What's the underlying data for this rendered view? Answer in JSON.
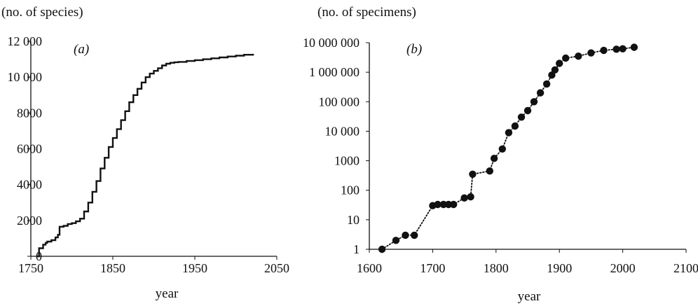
{
  "chart_data": [
    {
      "type": "line",
      "panel_label": "(a)",
      "ylabel": "(no. of species)",
      "xlabel": "year",
      "xlim": [
        1750,
        2050
      ],
      "ylim": [
        0,
        12000
      ],
      "x_ticks": [
        1750,
        1850,
        1950,
        2050
      ],
      "x_tick_labels": [
        "1750",
        "1850",
        "1950",
        "2050"
      ],
      "y_ticks": [
        0,
        2000,
        4000,
        6000,
        8000,
        10000,
        12000
      ],
      "y_tick_labels": [
        "0",
        "2000",
        "4000",
        "6000",
        "8000",
        "10 000",
        "12 000"
      ],
      "grid": false,
      "series": [
        {
          "style": "step",
          "x": [
            1758,
            1760,
            1763,
            1765,
            1768,
            1770,
            1775,
            1780,
            1783,
            1785,
            1790,
            1795,
            1800,
            1805,
            1810,
            1815,
            1820,
            1825,
            1830,
            1835,
            1840,
            1845,
            1850,
            1855,
            1860,
            1865,
            1870,
            1875,
            1880,
            1885,
            1890,
            1895,
            1900,
            1905,
            1910,
            1915,
            1920,
            1925,
            1930,
            1940,
            1950,
            1960,
            1970,
            1980,
            1990,
            2000,
            2010,
            2021
          ],
          "values": [
            0,
            450,
            450,
            650,
            750,
            820,
            900,
            1050,
            1200,
            1650,
            1700,
            1800,
            1850,
            1950,
            2100,
            2500,
            3000,
            3600,
            4200,
            4900,
            5500,
            6100,
            6600,
            7100,
            7600,
            8100,
            8600,
            9000,
            9350,
            9700,
            10000,
            10200,
            10350,
            10500,
            10650,
            10750,
            10800,
            10830,
            10850,
            10900,
            10950,
            11000,
            11050,
            11100,
            11150,
            11200,
            11250,
            11300
          ]
        }
      ]
    },
    {
      "type": "line",
      "panel_label": "(b)",
      "ylabel": "(no. of specimens)",
      "xlabel": "year",
      "xlim": [
        1600,
        2100
      ],
      "ylim": [
        1,
        10000000
      ],
      "yscale": "log",
      "x_ticks": [
        1600,
        1700,
        1800,
        1900,
        2000,
        2100
      ],
      "x_tick_labels": [
        "1600",
        "1700",
        "1800",
        "1900",
        "2000",
        "2100"
      ],
      "y_ticks": [
        1,
        10,
        100,
        1000,
        10000,
        100000,
        1000000,
        10000000
      ],
      "y_tick_labels": [
        "1",
        "10",
        "100",
        "1000",
        "10 000",
        "100 000",
        "1 000 000",
        "10 000 000"
      ],
      "grid": false,
      "series": [
        {
          "style": "dotted-line-with-markers",
          "x": [
            1620,
            1642,
            1657,
            1671,
            1700,
            1708,
            1717,
            1725,
            1733,
            1750,
            1760,
            1763,
            1790,
            1797,
            1810,
            1820,
            1830,
            1840,
            1850,
            1860,
            1870,
            1880,
            1888,
            1893,
            1900,
            1910,
            1930,
            1950,
            1970,
            1990,
            2000,
            2018
          ],
          "values": [
            1,
            2,
            3,
            3,
            30,
            33,
            33,
            33,
            33,
            55,
            60,
            350,
            450,
            1200,
            2500,
            9000,
            15000,
            30000,
            50000,
            100000,
            200000,
            400000,
            800000,
            1200000,
            2000000,
            3000000,
            3500000,
            4500000,
            5500000,
            6000000,
            6200000,
            7000000
          ]
        }
      ]
    }
  ]
}
